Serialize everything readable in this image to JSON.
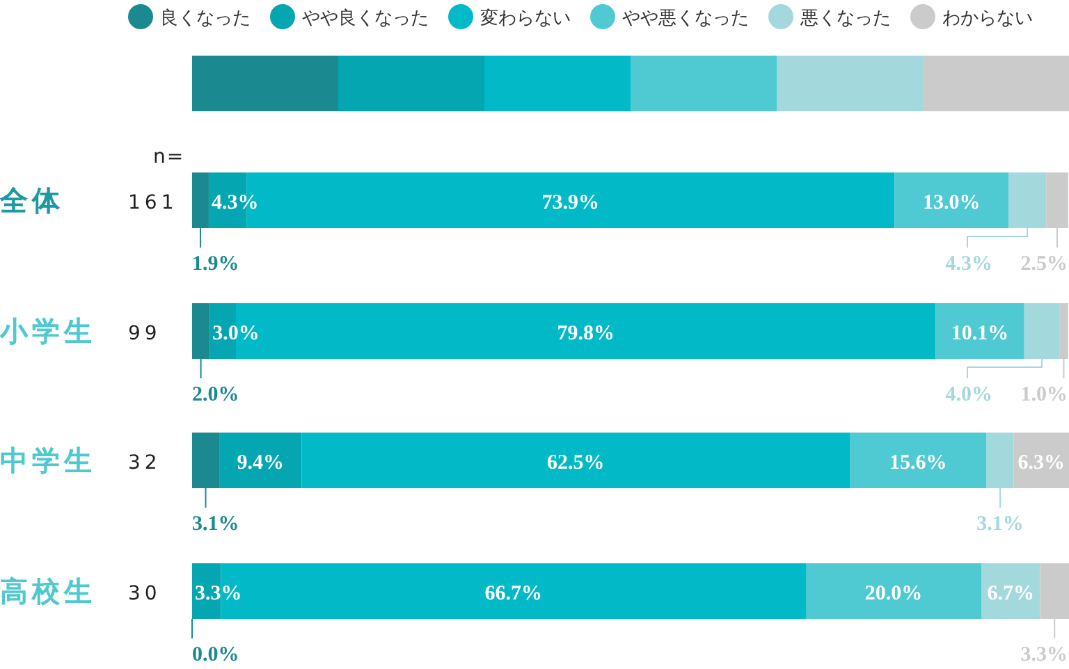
{
  "chart_data": {
    "type": "bar",
    "orientation": "horizontal",
    "stacked": true,
    "legend": "top",
    "categories": [
      "全体",
      "小学生",
      "中学生",
      "高校生"
    ],
    "series": [
      {
        "name": "良くなった",
        "color": "#1a8a90",
        "values": [
          1.9,
          2.0,
          3.1,
          0.0
        ],
        "value_labels": [
          "1.9%",
          "2.0%",
          "3.1%",
          null
        ]
      },
      {
        "name": "やや良くなった",
        "color": "#03a6b1",
        "values": [
          4.3,
          3.0,
          9.4,
          3.3
        ],
        "value_labels": [
          "4.3%",
          "3.0%",
          "9.4%",
          "3.3%"
        ]
      },
      {
        "name": "変わらない",
        "color": "#02bac7",
        "values": [
          73.9,
          79.8,
          62.5,
          66.7
        ],
        "value_labels": [
          "73.9%",
          "79.8%",
          "62.5%",
          "66.7%"
        ]
      },
      {
        "name": "やや悪くなった",
        "color": "#4fcad2",
        "values": [
          13.0,
          10.1,
          15.6,
          20.0
        ],
        "value_labels": [
          "13.0%",
          "10.1%",
          "15.6%",
          "20.0%"
        ]
      },
      {
        "name": "悪くなった",
        "color": "#a3d9dd",
        "values": [
          4.3,
          4.0,
          3.1,
          6.7
        ],
        "value_labels": [
          "4.3%",
          "4.0%",
          "3.1%",
          "6.7%"
        ]
      },
      {
        "name": "わからない",
        "color": "#cbcbcb",
        "values": [
          2.5,
          1.0,
          6.3,
          3.3
        ],
        "value_labels": [
          "2.5%",
          "1.0%",
          "6.3%",
          "3.3%"
        ]
      }
    ],
    "annotations": [
      "n=",
      "161",
      "99",
      "32",
      "30",
      {
        "text": "0.0%",
        "x": 0,
        "y": "高校生"
      }
    ]
  }
}
